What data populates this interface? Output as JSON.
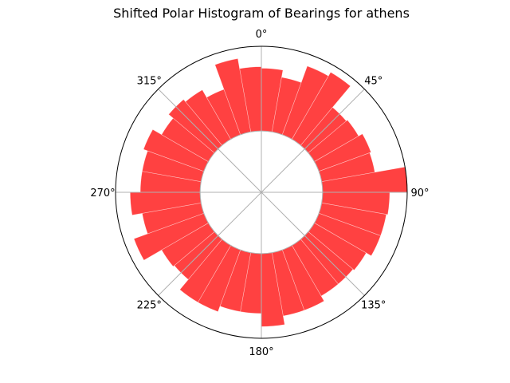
{
  "chart_data": {
    "type": "bar",
    "projection": "polar",
    "title": "Shifted Polar Histogram of Bearings for athens",
    "theta_zero_location": "N",
    "theta_direction": "clockwise",
    "theta_tick_labels": [
      "0°",
      "45°",
      "90°",
      "135°",
      "180°",
      "225°",
      "270°",
      "315°"
    ],
    "theta_ticks_deg": [
      0,
      45,
      90,
      135,
      180,
      225,
      270,
      315
    ],
    "bin_width_deg": 10,
    "inner_radius": 0.42,
    "rlim": [
      0,
      1.0
    ],
    "grid": true,
    "bar_color": "#ff2020",
    "bar_alpha": 0.85,
    "bins": [
      {
        "center_deg": -5,
        "value": 0.86
      },
      {
        "center_deg": 5,
        "value": 0.85
      },
      {
        "center_deg": 15,
        "value": 0.8
      },
      {
        "center_deg": 25,
        "value": 0.92
      },
      {
        "center_deg": 35,
        "value": 0.95
      },
      {
        "center_deg": 45,
        "value": 0.76
      },
      {
        "center_deg": 55,
        "value": 0.77
      },
      {
        "center_deg": 65,
        "value": 0.8
      },
      {
        "center_deg": 75,
        "value": 0.79
      },
      {
        "center_deg": 85,
        "value": 1.0
      },
      {
        "center_deg": 95,
        "value": 0.88
      },
      {
        "center_deg": 105,
        "value": 0.87
      },
      {
        "center_deg": 115,
        "value": 0.87
      },
      {
        "center_deg": 125,
        "value": 0.83
      },
      {
        "center_deg": 135,
        "value": 0.82
      },
      {
        "center_deg": 145,
        "value": 0.82
      },
      {
        "center_deg": 155,
        "value": 0.86
      },
      {
        "center_deg": 165,
        "value": 0.86
      },
      {
        "center_deg": 175,
        "value": 0.92
      },
      {
        "center_deg": 185,
        "value": 0.83
      },
      {
        "center_deg": 195,
        "value": 0.83
      },
      {
        "center_deg": 205,
        "value": 0.87
      },
      {
        "center_deg": 215,
        "value": 0.87
      },
      {
        "center_deg": 225,
        "value": 0.78
      },
      {
        "center_deg": 235,
        "value": 0.79
      },
      {
        "center_deg": 245,
        "value": 0.93
      },
      {
        "center_deg": 255,
        "value": 0.83
      },
      {
        "center_deg": 265,
        "value": 0.9
      },
      {
        "center_deg": 275,
        "value": 0.83
      },
      {
        "center_deg": 285,
        "value": 0.83
      },
      {
        "center_deg": 295,
        "value": 0.86
      },
      {
        "center_deg": 305,
        "value": 0.79
      },
      {
        "center_deg": 315,
        "value": 0.83
      },
      {
        "center_deg": 325,
        "value": 0.81
      },
      {
        "center_deg": 335,
        "value": 0.75
      },
      {
        "center_deg": 345,
        "value": 0.93
      }
    ]
  }
}
